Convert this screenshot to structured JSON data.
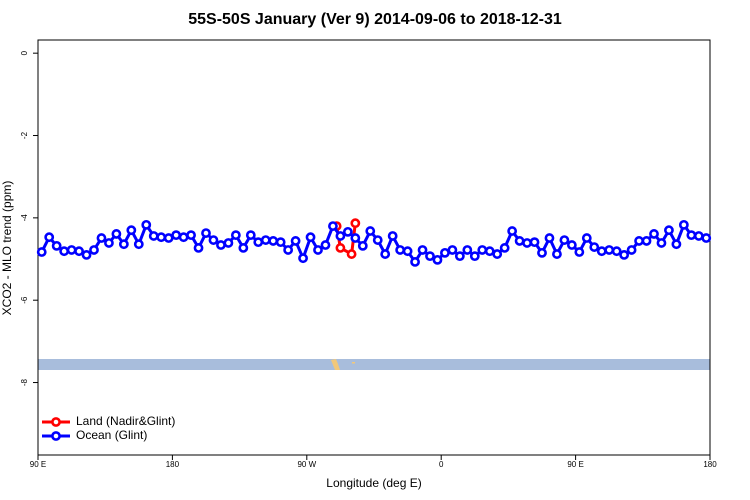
{
  "chart_data": {
    "type": "line",
    "title": "55S-50S January (Ver 9)   2014-09-06 to 2018-12-31",
    "x_label": "Longitude (deg E)",
    "y_label": "XCO2 - MLO trend (ppm)",
    "xlim": [
      90,
      540
    ],
    "ylim": [
      -9.76,
      0.32
    ],
    "xticks": [
      {
        "value": 90,
        "label": "90 E"
      },
      180,
      {
        "value": 270,
        "label": "90 W"
      },
      {
        "value": 360,
        "label": "0"
      },
      {
        "value": 450,
        "label": "90 E"
      },
      {
        "value": 540,
        "label": "180"
      }
    ],
    "yticks": [
      0,
      -2,
      -4,
      -6,
      -8
    ],
    "legend": "bottom-left",
    "series": [
      {
        "name": "Land (Nadir&Glint)",
        "color": "#ff0000",
        "x": [
          290,
          292.5,
          300,
          302.5
        ],
        "values": [
          -4.2,
          -4.73,
          -4.88,
          -4.13
        ]
      },
      {
        "name": "Ocean (Glint)",
        "color": "#0000ff",
        "x": [
          92.5,
          97.5,
          102.5,
          107.5,
          112.5,
          117.5,
          122.5,
          127.5,
          132.5,
          137.5,
          142.5,
          147.5,
          152.5,
          157.5,
          162.5,
          167.5,
          172.5,
          177.5,
          182.5,
          187.5,
          192.5,
          197.5,
          202.5,
          207.5,
          212.5,
          217.5,
          222.5,
          227.5,
          232.5,
          237.5,
          242.5,
          247.5,
          252.5,
          257.5,
          262.5,
          267.5,
          272.5,
          277.5,
          282.5,
          287.5,
          292.5,
          297.5,
          302.5,
          307.5,
          312.5,
          317.5,
          322.5,
          327.5,
          332.5,
          337.5,
          342.5,
          347.5,
          352.5,
          357.5,
          362.5,
          367.5,
          372.5,
          377.5,
          382.5,
          387.5,
          392.5,
          397.5,
          402.5,
          407.5,
          412.5,
          417.5,
          422.5,
          427.5,
          432.5,
          437.5,
          442.5,
          447.5,
          452.5,
          457.5,
          462.5,
          467.5,
          472.5,
          477.5,
          482.5,
          487.5,
          492.5,
          497.5,
          502.5,
          507.5,
          512.5,
          517.5,
          522.5,
          527.5,
          532.5,
          537.5
        ],
        "values": [
          -4.83,
          -4.47,
          -4.68,
          -4.81,
          -4.78,
          -4.81,
          -4.9,
          -4.78,
          -4.49,
          -4.61,
          -4.39,
          -4.64,
          -4.3,
          -4.64,
          -4.17,
          -4.44,
          -4.47,
          -4.49,
          -4.42,
          -4.47,
          -4.42,
          -4.73,
          -4.37,
          -4.54,
          -4.66,
          -4.61,
          -4.42,
          -4.73,
          -4.42,
          -4.59,
          -4.54,
          -4.56,
          -4.59,
          -4.78,
          -4.56,
          -4.98,
          -4.47,
          -4.78,
          -4.66,
          -4.2,
          -4.44,
          -4.34,
          -4.49,
          -4.68,
          -4.32,
          -4.54,
          -4.88,
          -4.44,
          -4.78,
          -4.81,
          -5.07,
          -4.78,
          -4.93,
          -5.02,
          -4.85,
          -4.78,
          -4.93,
          -4.78,
          -4.93,
          -4.78,
          -4.81,
          -4.88,
          -4.73,
          -4.32,
          -4.56,
          -4.61,
          -4.59,
          -4.85,
          -4.49,
          -4.88,
          -4.54,
          -4.66,
          -4.83,
          -4.49,
          -4.71,
          -4.81,
          -4.78,
          -4.81,
          -4.9,
          -4.78,
          -4.56,
          -4.56,
          -4.39,
          -4.61,
          -4.3,
          -4.64,
          -4.17,
          -4.42,
          -4.44,
          -4.49
        ]
      }
    ]
  }
}
